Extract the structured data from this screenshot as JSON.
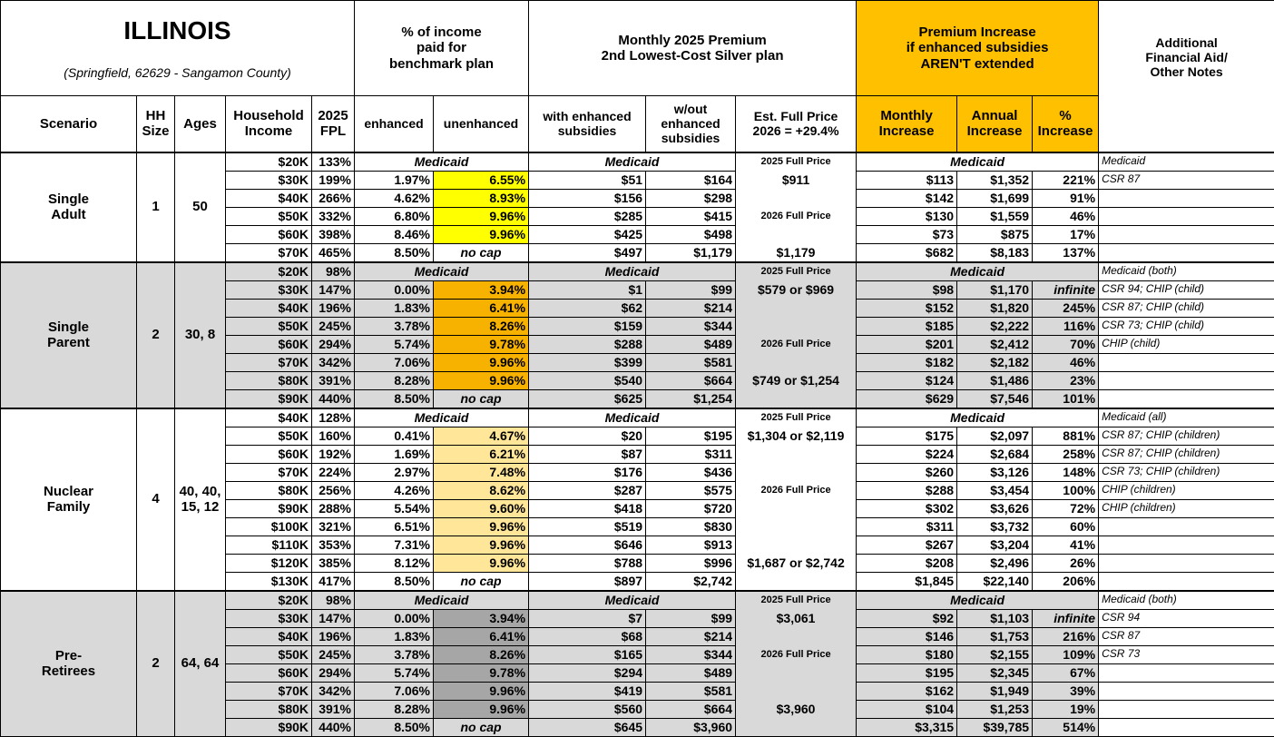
{
  "header": {
    "title": "ILLINOIS",
    "subtitle": "(Springfield, 62629 - Sangamon County)",
    "benchmark": "% of income\npaid for\nbenchmark plan",
    "premium": "Monthly 2025 Premium\n2nd Lowest-Cost Silver plan",
    "increase": "Premium Increase\nif enhanced subsidies\nAREN'T extended",
    "notes": "Additional\nFinancial Aid/\nOther Notes",
    "columns": [
      "Scenario",
      "HH\nSize",
      "Ages",
      "Household\nIncome",
      "2025\nFPL",
      "enhanced",
      "unenhanced",
      "with enhanced\nsubsidies",
      "w/out\nenhanced\nsubsidies",
      "Est. Full Price\n2026 = +29.4%",
      "Monthly\nIncrease",
      "Annual\nIncrease",
      "%\nIncrease"
    ]
  },
  "groups": [
    {
      "scenario": "Single\nAdult",
      "hh_size": "1",
      "ages": "50",
      "background": "#ffffff",
      "highlight": "#ffff00",
      "full_price": [
        "2025 Full Price",
        "$911",
        null,
        "2026 Full Price",
        null,
        "$1,179"
      ],
      "rows": [
        {
          "income": "$20K",
          "fpl": "133%",
          "benchmark": "Medicaid",
          "premium": "Medicaid",
          "increase": "Medicaid",
          "note": "Medicaid"
        },
        {
          "income": "$30K",
          "fpl": "199%",
          "enhanced": "1.97%",
          "unenhanced": "6.55%",
          "with": "$51",
          "without": "$164",
          "monthly": "$113",
          "annual": "$1,352",
          "pct": "221%",
          "note": "CSR 87"
        },
        {
          "income": "$40K",
          "fpl": "266%",
          "enhanced": "4.62%",
          "unenhanced": "8.93%",
          "with": "$156",
          "without": "$298",
          "monthly": "$142",
          "annual": "$1,699",
          "pct": "91%"
        },
        {
          "income": "$50K",
          "fpl": "332%",
          "enhanced": "6.80%",
          "unenhanced": "9.96%",
          "with": "$285",
          "without": "$415",
          "monthly": "$130",
          "annual": "$1,559",
          "pct": "46%"
        },
        {
          "income": "$60K",
          "fpl": "398%",
          "enhanced": "8.46%",
          "unenhanced": "9.96%",
          "with": "$425",
          "without": "$498",
          "monthly": "$73",
          "annual": "$875",
          "pct": "17%"
        },
        {
          "income": "$70K",
          "fpl": "465%",
          "enhanced": "8.50%",
          "unenhanced": "no cap",
          "with": "$497",
          "without": "$1,179",
          "monthly": "$682",
          "annual": "$8,183",
          "pct": "137%"
        }
      ]
    },
    {
      "scenario": "Single\nParent",
      "hh_size": "2",
      "ages": "30, 8",
      "background": "#d9d9d9",
      "highlight": "#f7b200",
      "full_price": [
        "2025 Full Price",
        "$579 or $969",
        null,
        null,
        "2026 Full Price",
        null,
        "$749 or $1,254",
        null
      ],
      "rows": [
        {
          "income": "$20K",
          "fpl": "98%",
          "benchmark": "Medicaid",
          "premium": "Medicaid",
          "increase": "Medicaid",
          "note": "Medicaid (both)"
        },
        {
          "income": "$30K",
          "fpl": "147%",
          "enhanced": "0.00%",
          "unenhanced": "3.94%",
          "with": "$1",
          "without": "$99",
          "monthly": "$98",
          "annual": "$1,170",
          "pct": "infinite",
          "note": "CSR 94; CHIP (child)"
        },
        {
          "income": "$40K",
          "fpl": "196%",
          "enhanced": "1.83%",
          "unenhanced": "6.41%",
          "with": "$62",
          "without": "$214",
          "monthly": "$152",
          "annual": "$1,820",
          "pct": "245%",
          "note": "CSR 87; CHIP (child)"
        },
        {
          "income": "$50K",
          "fpl": "245%",
          "enhanced": "3.78%",
          "unenhanced": "8.26%",
          "with": "$159",
          "without": "$344",
          "monthly": "$185",
          "annual": "$2,222",
          "pct": "116%",
          "note": "CSR 73; CHIP (child)"
        },
        {
          "income": "$60K",
          "fpl": "294%",
          "enhanced": "5.74%",
          "unenhanced": "9.78%",
          "with": "$288",
          "without": "$489",
          "monthly": "$201",
          "annual": "$2,412",
          "pct": "70%",
          "note": "CHIP (child)"
        },
        {
          "income": "$70K",
          "fpl": "342%",
          "enhanced": "7.06%",
          "unenhanced": "9.96%",
          "with": "$399",
          "without": "$581",
          "monthly": "$182",
          "annual": "$2,182",
          "pct": "46%"
        },
        {
          "income": "$80K",
          "fpl": "391%",
          "enhanced": "8.28%",
          "unenhanced": "9.96%",
          "with": "$540",
          "without": "$664",
          "monthly": "$124",
          "annual": "$1,486",
          "pct": "23%"
        },
        {
          "income": "$90K",
          "fpl": "440%",
          "enhanced": "8.50%",
          "unenhanced": "no cap",
          "with": "$625",
          "without": "$1,254",
          "monthly": "$629",
          "annual": "$7,546",
          "pct": "101%"
        }
      ]
    },
    {
      "scenario": "Nuclear\nFamily",
      "hh_size": "4",
      "ages": "40, 40,\n15, 12",
      "background": "#ffffff",
      "highlight": "#ffe699",
      "full_price": [
        "2025 Full Price",
        "$1,304 or $2,119",
        null,
        null,
        "2026 Full Price",
        null,
        null,
        null,
        "$1,687 or $2,742",
        null
      ],
      "rows": [
        {
          "income": "$40K",
          "fpl": "128%",
          "benchmark": "Medicaid",
          "premium": "Medicaid",
          "increase": "Medicaid",
          "note": "Medicaid (all)"
        },
        {
          "income": "$50K",
          "fpl": "160%",
          "enhanced": "0.41%",
          "unenhanced": "4.67%",
          "with": "$20",
          "without": "$195",
          "monthly": "$175",
          "annual": "$2,097",
          "pct": "881%",
          "note": "CSR 87; CHIP (children)"
        },
        {
          "income": "$60K",
          "fpl": "192%",
          "enhanced": "1.69%",
          "unenhanced": "6.21%",
          "with": "$87",
          "without": "$311",
          "monthly": "$224",
          "annual": "$2,684",
          "pct": "258%",
          "note": "CSR 87; CHIP (children)"
        },
        {
          "income": "$70K",
          "fpl": "224%",
          "enhanced": "2.97%",
          "unenhanced": "7.48%",
          "with": "$176",
          "without": "$436",
          "monthly": "$260",
          "annual": "$3,126",
          "pct": "148%",
          "note": "CSR 73; CHIP (children)"
        },
        {
          "income": "$80K",
          "fpl": "256%",
          "enhanced": "4.26%",
          "unenhanced": "8.62%",
          "with": "$287",
          "without": "$575",
          "monthly": "$288",
          "annual": "$3,454",
          "pct": "100%",
          "note": "CHIP (children)"
        },
        {
          "income": "$90K",
          "fpl": "288%",
          "enhanced": "5.54%",
          "unenhanced": "9.60%",
          "with": "$418",
          "without": "$720",
          "monthly": "$302",
          "annual": "$3,626",
          "pct": "72%",
          "note": "CHIP (children)"
        },
        {
          "income": "$100K",
          "fpl": "321%",
          "enhanced": "6.51%",
          "unenhanced": "9.96%",
          "with": "$519",
          "without": "$830",
          "monthly": "$311",
          "annual": "$3,732",
          "pct": "60%"
        },
        {
          "income": "$110K",
          "fpl": "353%",
          "enhanced": "7.31%",
          "unenhanced": "9.96%",
          "with": "$646",
          "without": "$913",
          "monthly": "$267",
          "annual": "$3,204",
          "pct": "41%"
        },
        {
          "income": "$120K",
          "fpl": "385%",
          "enhanced": "8.12%",
          "unenhanced": "9.96%",
          "with": "$788",
          "without": "$996",
          "monthly": "$208",
          "annual": "$2,496",
          "pct": "26%"
        },
        {
          "income": "$130K",
          "fpl": "417%",
          "enhanced": "8.50%",
          "unenhanced": "no cap",
          "with": "$897",
          "without": "$2,742",
          "monthly": "$1,845",
          "annual": "$22,140",
          "pct": "206%"
        }
      ]
    },
    {
      "scenario": "Pre-\nRetirees",
      "hh_size": "2",
      "ages": "64, 64",
      "background": "#d9d9d9",
      "highlight": "#a6a6a6",
      "full_price": [
        "2025 Full Price",
        "$3,061",
        null,
        "2026 Full Price",
        null,
        null,
        "$3,960",
        null
      ],
      "rows": [
        {
          "income": "$20K",
          "fpl": "98%",
          "benchmark": "Medicaid",
          "premium": "Medicaid",
          "increase": "Medicaid",
          "note": "Medicaid (both)"
        },
        {
          "income": "$30K",
          "fpl": "147%",
          "enhanced": "0.00%",
          "unenhanced": "3.94%",
          "with": "$7",
          "without": "$99",
          "monthly": "$92",
          "annual": "$1,103",
          "pct": "infinite",
          "note": "CSR 94"
        },
        {
          "income": "$40K",
          "fpl": "196%",
          "enhanced": "1.83%",
          "unenhanced": "6.41%",
          "with": "$68",
          "without": "$214",
          "monthly": "$146",
          "annual": "$1,753",
          "pct": "216%",
          "note": "CSR 87"
        },
        {
          "income": "$50K",
          "fpl": "245%",
          "enhanced": "3.78%",
          "unenhanced": "8.26%",
          "with": "$165",
          "without": "$344",
          "monthly": "$180",
          "annual": "$2,155",
          "pct": "109%",
          "note": "CSR 73"
        },
        {
          "income": "$60K",
          "fpl": "294%",
          "enhanced": "5.74%",
          "unenhanced": "9.78%",
          "with": "$294",
          "without": "$489",
          "monthly": "$195",
          "annual": "$2,345",
          "pct": "67%"
        },
        {
          "income": "$70K",
          "fpl": "342%",
          "enhanced": "7.06%",
          "unenhanced": "9.96%",
          "with": "$419",
          "without": "$581",
          "monthly": "$162",
          "annual": "$1,949",
          "pct": "39%"
        },
        {
          "income": "$80K",
          "fpl": "391%",
          "enhanced": "8.28%",
          "unenhanced": "9.96%",
          "with": "$560",
          "without": "$664",
          "monthly": "$104",
          "annual": "$1,253",
          "pct": "19%"
        },
        {
          "income": "$90K",
          "fpl": "440%",
          "enhanced": "8.50%",
          "unenhanced": "no cap",
          "with": "$645",
          "without": "$3,960",
          "monthly": "$3,315",
          "annual": "$39,785",
          "pct": "514%"
        }
      ]
    }
  ]
}
